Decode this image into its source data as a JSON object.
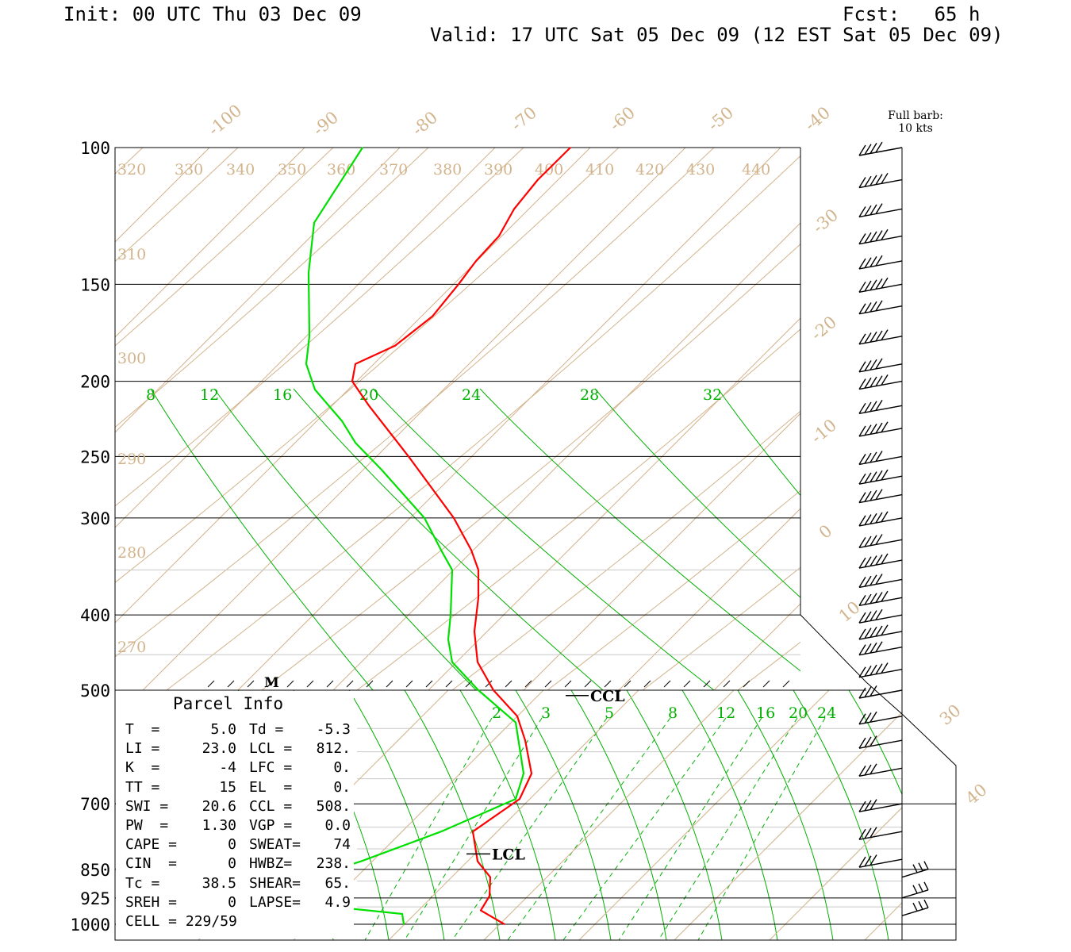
{
  "header": {
    "init": "Init: 00 UTC Thu 03 Dec 09",
    "fcst": "Fcst:   65 h",
    "valid": "Valid: 17 UTC Sat 05 Dec 09 (12 EST Sat 05 Dec 09)"
  },
  "barb_legend": {
    "line1": "Full barb:",
    "line2": "10 kts"
  },
  "colors": {
    "temperature": "#ff0000",
    "dewpoint": "#00e000",
    "mixing_ratio": "#00b000",
    "dry_adiabat_isotherm": "#d2b48c",
    "grid": "#000000",
    "barb": "#000000"
  },
  "chart_data": {
    "type": "line",
    "subtype": "skew-t log-p sounding",
    "y_axis": {
      "scale": "log-pressure (two panels: 100-500 hPa upper, 500-1000 hPa lower)",
      "ticks": [
        "100",
        "150",
        "200",
        "250",
        "300",
        "400",
        "500",
        "700",
        "850",
        "925",
        "1000"
      ]
    },
    "isotherm_labels_upper": [
      "-100",
      "-90",
      "-80",
      "-70",
      "-60",
      "-50",
      "-40",
      "-30",
      "-20",
      "-10",
      "0",
      "10"
    ],
    "isotherm_labels_lower": [
      "30",
      "40"
    ],
    "theta_labels_top": [
      "320",
      "330",
      "340",
      "350",
      "360",
      "370",
      "380",
      "390",
      "400",
      "410",
      "420",
      "430",
      "440"
    ],
    "theta_labels_left": [
      "310",
      "300",
      "290",
      "280",
      "270"
    ],
    "mixing_ratio_labels_upper": [
      "8",
      "12",
      "16",
      "20",
      "24",
      "28",
      "32"
    ],
    "mixing_ratio_labels_lower": [
      "2",
      "3",
      "5",
      "8",
      "12",
      "16",
      "20",
      "24"
    ],
    "series": [
      {
        "name": "Temperature",
        "points": [
          {
            "p": 100,
            "x": 719
          },
          {
            "p": 110,
            "x": 678
          },
          {
            "p": 120,
            "x": 648
          },
          {
            "p": 130,
            "x": 629
          },
          {
            "p": 140,
            "x": 600
          },
          {
            "p": 150,
            "x": 578
          },
          {
            "p": 165,
            "x": 545
          },
          {
            "p": 180,
            "x": 498
          },
          {
            "p": 190,
            "x": 448
          },
          {
            "p": 200,
            "x": 444
          },
          {
            "p": 215,
            "x": 465
          },
          {
            "p": 250,
            "x": 515
          },
          {
            "p": 300,
            "x": 572
          },
          {
            "p": 330,
            "x": 594
          },
          {
            "p": 350,
            "x": 603
          },
          {
            "p": 380,
            "x": 603
          },
          {
            "p": 420,
            "x": 598
          },
          {
            "p": 460,
            "x": 602
          },
          {
            "p": 500,
            "x": 622
          },
          {
            "p": 540,
            "x": 652
          },
          {
            "p": 580,
            "x": 662
          },
          {
            "p": 640,
            "x": 670
          },
          {
            "p": 690,
            "x": 655
          },
          {
            "p": 760,
            "x": 596
          },
          {
            "p": 830,
            "x": 602
          },
          {
            "p": 870,
            "x": 618
          },
          {
            "p": 920,
            "x": 617
          },
          {
            "p": 960,
            "x": 606
          },
          {
            "p": 1000,
            "x": 636
          }
        ]
      },
      {
        "name": "Dewpoint",
        "points": [
          {
            "p": 100,
            "x": 457
          },
          {
            "p": 125,
            "x": 396
          },
          {
            "p": 145,
            "x": 389
          },
          {
            "p": 175,
            "x": 390
          },
          {
            "p": 190,
            "x": 386
          },
          {
            "p": 205,
            "x": 397
          },
          {
            "p": 225,
            "x": 431
          },
          {
            "p": 240,
            "x": 448
          },
          {
            "p": 260,
            "x": 481
          },
          {
            "p": 300,
            "x": 535
          },
          {
            "p": 330,
            "x": 556
          },
          {
            "p": 350,
            "x": 570
          },
          {
            "p": 400,
            "x": 568
          },
          {
            "p": 430,
            "x": 565
          },
          {
            "p": 460,
            "x": 570
          },
          {
            "p": 500,
            "x": 603
          },
          {
            "p": 550,
            "x": 650
          },
          {
            "p": 640,
            "x": 660
          },
          {
            "p": 690,
            "x": 650
          },
          {
            "p": 760,
            "x": 556
          },
          {
            "p": 830,
            "x": 455
          },
          {
            "p": 925,
            "x": 310
          },
          {
            "p": 970,
            "x": 507
          },
          {
            "p": 1000,
            "x": 509
          }
        ]
      }
    ],
    "markers": [
      {
        "label": "CCL",
        "p": 508
      },
      {
        "label": "LCL",
        "p": 812
      },
      {
        "label": "M",
        "p": 500
      }
    ],
    "wind_barbs": {
      "full_barb_kts": 10,
      "pressures": [
        100,
        110,
        120,
        130,
        140,
        150,
        160,
        175,
        190,
        200,
        215,
        230,
        250,
        265,
        280,
        300,
        320,
        340,
        360,
        380,
        400,
        420,
        440,
        470,
        500,
        540,
        580,
        630,
        700,
        760,
        825,
        870,
        925,
        975
      ]
    }
  },
  "parcel_info": {
    "title": "Parcel Info",
    "rows": [
      {
        "k1": "T  =",
        "v1": "5.0",
        "k2": "Td =",
        "v2": "-5.3"
      },
      {
        "k1": "LI =",
        "v1": "23.0",
        "k2": "LCL =",
        "v2": "812."
      },
      {
        "k1": "K  =",
        "v1": "-4",
        "k2": "LFC =",
        "v2": "0."
      },
      {
        "k1": "TT =",
        "v1": "15",
        "k2": "EL  =",
        "v2": "0."
      },
      {
        "k1": "SWI =",
        "v1": "20.6",
        "k2": "CCL =",
        "v2": "508."
      },
      {
        "k1": "PW  =",
        "v1": "1.30",
        "k2": "VGP =",
        "v2": "0.0"
      },
      {
        "k1": "CAPE =",
        "v1": "0",
        "k2": "SWEAT=",
        "v2": "74"
      },
      {
        "k1": "CIN  =",
        "v1": "0",
        "k2": "HWBZ=",
        "v2": "238."
      },
      {
        "k1": "Tc =",
        "v1": "38.5",
        "k2": "SHEAR=",
        "v2": "65."
      },
      {
        "k1": "SREH =",
        "v1": "0",
        "k2": "LAPSE=",
        "v2": "4.9"
      },
      {
        "k1": "CELL = 229/59",
        "v1": "",
        "k2": "",
        "v2": ""
      }
    ]
  }
}
